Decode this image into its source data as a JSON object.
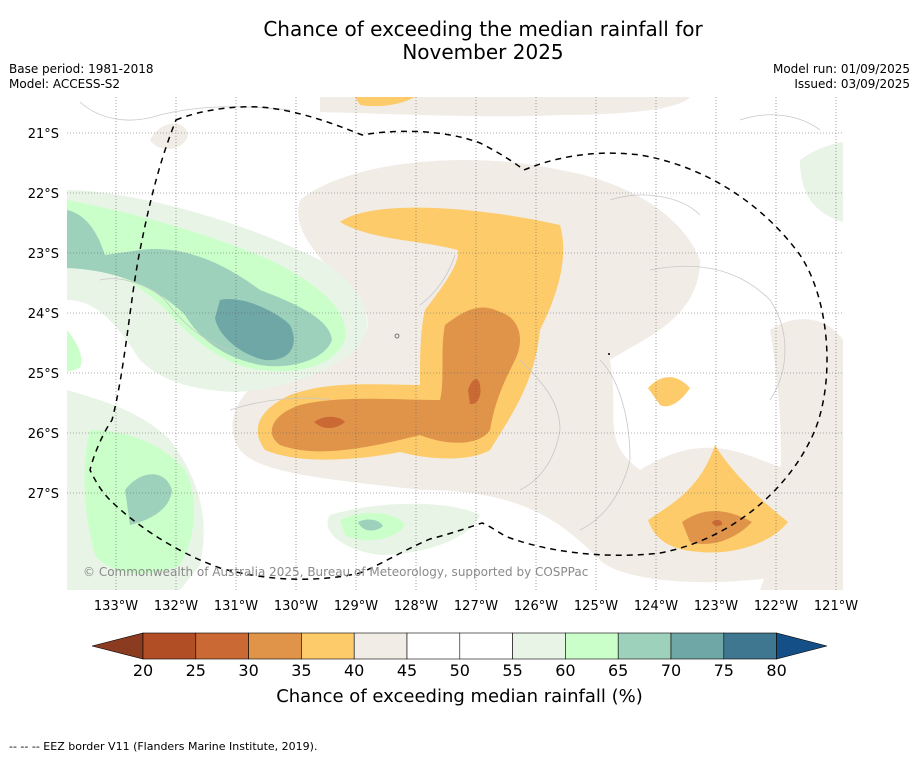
{
  "header": {
    "title_line1": "Chance of exceeding the median rainfall for",
    "title_line2": "November 2025",
    "base_period": "Base period: 1981-2018",
    "model": "Model: ACCESS-S2",
    "model_run": "Model run: 01/09/2025",
    "issued": "Issued: 03/09/2025"
  },
  "map": {
    "lat_labels": [
      "21°S",
      "22°S",
      "23°S",
      "24°S",
      "25°S",
      "26°S",
      "27°S"
    ],
    "lon_labels": [
      "133°W",
      "132°W",
      "131°W",
      "130°W",
      "129°W",
      "128°W",
      "127°W",
      "126°W",
      "125°W",
      "124°W",
      "123°W",
      "122°W",
      "121°W"
    ],
    "copyright": "© Commonwealth of Australia 2025, Bureau of Meteorology, supported by COSPPac"
  },
  "colorbar": {
    "ticks": [
      "20",
      "25",
      "30",
      "35",
      "40",
      "45",
      "50",
      "55",
      "60",
      "65",
      "70",
      "75",
      "80"
    ],
    "colors": [
      "#b24e26",
      "#cb6935",
      "#e0944a",
      "#fdcb6a",
      "#f1ece6",
      "#ffffff",
      "#ffffff",
      "#e8f4e6",
      "#caffca",
      "#9ed1bb",
      "#6fa6a6",
      "#3f7690"
    ],
    "under_color": "#8b3b1f",
    "over_color": "#154f88",
    "label": "Chance of exceeding median rainfall (%)"
  },
  "footer": {
    "eez_note": "--  --  -- EEZ border V11 (Flanders Marine Institute, 2019)."
  }
}
